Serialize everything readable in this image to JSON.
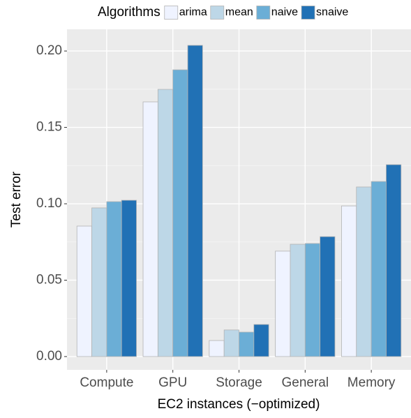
{
  "chart_data": {
    "type": "bar",
    "x_label": "EC2 instances (−optimized)",
    "y_label": "Test error",
    "legend_title": "Algorithms",
    "legend_position": "top",
    "categories": [
      "Compute",
      "GPU",
      "Storage",
      "General",
      "Memory"
    ],
    "series": [
      {
        "name": "arima",
        "color": "#eff3ff",
        "values": [
          0.0854,
          0.1667,
          0.0105,
          0.069,
          0.0986
        ]
      },
      {
        "name": "mean",
        "color": "#bdd7e7",
        "values": [
          0.0973,
          0.1749,
          0.0174,
          0.0735,
          0.111
        ]
      },
      {
        "name": "naive",
        "color": "#6baed6",
        "values": [
          0.1014,
          0.1877,
          0.016,
          0.074,
          0.1146
        ]
      },
      {
        "name": "snaive",
        "color": "#2171b5",
        "values": [
          0.1023,
          0.2037,
          0.021,
          0.0785,
          0.1256
        ]
      }
    ],
    "ylim": [
      -0.0087,
      0.2142
    ],
    "yticks": [
      {
        "value": 0,
        "label": "0.00"
      },
      {
        "value": 0.05,
        "label": "0.05"
      },
      {
        "value": 0.1,
        "label": "0.10"
      },
      {
        "value": 0.15,
        "label": "0.15"
      },
      {
        "value": 0.2,
        "label": "0.20"
      }
    ],
    "grid": true
  }
}
